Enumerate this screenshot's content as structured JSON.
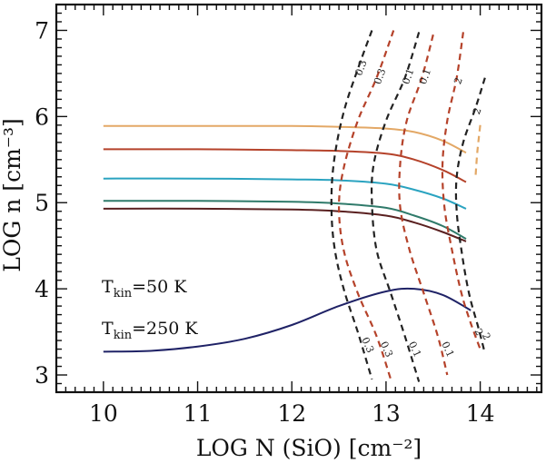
{
  "chart_data": {
    "type": "line",
    "title": "",
    "xlabel": "LOG N (SiO) [cm⁻²]",
    "ylabel": "LOG n [cm⁻³]",
    "xlim": [
      9.5,
      14.65
    ],
    "ylim": [
      2.8,
      7.3
    ],
    "xticks": [
      "10",
      "11",
      "12",
      "13",
      "14"
    ],
    "yticks": [
      "3",
      "4",
      "5",
      "6",
      "7"
    ],
    "grid": false,
    "series": [
      {
        "color": "#e3a866",
        "style": "solid",
        "x": [
          10,
          11,
          12,
          12.5,
          13,
          13.3,
          13.6,
          13.85
        ],
        "y": [
          5.89,
          5.89,
          5.89,
          5.88,
          5.86,
          5.82,
          5.72,
          5.58
        ]
      },
      {
        "color": "#b5422a",
        "style": "solid",
        "x": [
          10,
          11,
          12,
          12.5,
          13,
          13.3,
          13.6,
          13.85
        ],
        "y": [
          5.62,
          5.62,
          5.61,
          5.6,
          5.57,
          5.5,
          5.38,
          5.24
        ]
      },
      {
        "color": "#2aa3c0",
        "style": "solid",
        "x": [
          10,
          11,
          12,
          12.5,
          13,
          13.3,
          13.6,
          13.85
        ],
        "y": [
          5.28,
          5.28,
          5.27,
          5.26,
          5.22,
          5.15,
          5.05,
          4.93
        ]
      },
      {
        "color": "#2f7a6a",
        "style": "solid",
        "x": [
          10,
          11,
          12,
          12.5,
          13,
          13.3,
          13.6,
          13.85
        ],
        "y": [
          5.02,
          5.02,
          5.01,
          4.99,
          4.94,
          4.85,
          4.73,
          4.58
        ]
      },
      {
        "color": "#5a2020",
        "style": "solid",
        "x": [
          10,
          11,
          12,
          12.5,
          13,
          13.3,
          13.6,
          13.85
        ],
        "y": [
          4.93,
          4.93,
          4.92,
          4.9,
          4.85,
          4.77,
          4.66,
          4.55
        ]
      },
      {
        "color": "#1f2266",
        "style": "solid",
        "x": [
          10,
          10.5,
          11,
          11.5,
          12,
          12.5,
          13,
          13.3,
          13.6,
          13.9
        ],
        "y": [
          3.27,
          3.28,
          3.33,
          3.42,
          3.58,
          3.8,
          3.97,
          4.0,
          3.93,
          3.75
        ]
      },
      {
        "color": "#222222",
        "style": "dashed",
        "label": "0.3",
        "x": [
          12.85,
          12.7,
          12.55,
          12.45,
          12.42,
          12.45,
          12.55,
          12.7,
          12.85
        ],
        "y": [
          7.0,
          6.55,
          6.05,
          5.5,
          5.0,
          4.5,
          4.0,
          3.5,
          2.95
        ]
      },
      {
        "color": "#b5422a",
        "style": "dashed",
        "label": "0.3",
        "x": [
          13.08,
          12.9,
          12.7,
          12.55,
          12.5,
          12.55,
          12.7,
          12.9,
          13.05
        ],
        "y": [
          7.0,
          6.45,
          5.95,
          5.4,
          4.95,
          4.45,
          3.95,
          3.45,
          2.95
        ]
      },
      {
        "color": "#222222",
        "style": "dashed",
        "label": "0.1",
        "x": [
          13.35,
          13.2,
          13.0,
          12.87,
          12.85,
          12.9,
          13.05,
          13.2,
          13.35
        ],
        "y": [
          6.98,
          6.45,
          5.95,
          5.45,
          5.0,
          4.45,
          3.95,
          3.45,
          2.92
        ]
      },
      {
        "color": "#b5422a",
        "style": "dashed",
        "label": "0.1",
        "x": [
          13.5,
          13.38,
          13.22,
          13.15,
          13.15,
          13.25,
          13.4,
          13.55,
          13.65
        ],
        "y": [
          6.95,
          6.45,
          5.95,
          5.45,
          4.95,
          4.45,
          3.95,
          3.45,
          3.0
        ]
      },
      {
        "color": "#b5422a",
        "style": "dashed",
        "label": "2",
        "x": [
          13.82,
          13.75,
          13.65,
          13.6,
          13.62,
          13.7,
          13.8,
          13.9,
          14.0
        ],
        "y": [
          6.98,
          6.45,
          5.95,
          5.45,
          4.95,
          4.45,
          3.95,
          3.6,
          3.3
        ]
      },
      {
        "color": "#222222",
        "style": "dashed",
        "label": "2",
        "x": [
          14.05,
          13.95,
          13.82,
          13.75,
          13.75,
          13.8,
          13.88,
          13.98,
          14.05
        ],
        "y": [
          6.45,
          6.1,
          5.7,
          5.3,
          4.9,
          4.45,
          3.95,
          3.55,
          3.25
        ]
      },
      {
        "color": "#e3a866",
        "style": "dashed",
        "label": "",
        "x": [
          14.0,
          13.97,
          13.95
        ],
        "y": [
          5.9,
          5.6,
          5.3
        ]
      }
    ],
    "annotations": [
      {
        "text_main": "T",
        "text_sub": "kin",
        "text_rest": "=50 K",
        "color": "#5a2020"
      },
      {
        "text_main": "T",
        "text_sub": "kin",
        "text_rest": "=250 K",
        "color": "#1f2266"
      }
    ]
  }
}
